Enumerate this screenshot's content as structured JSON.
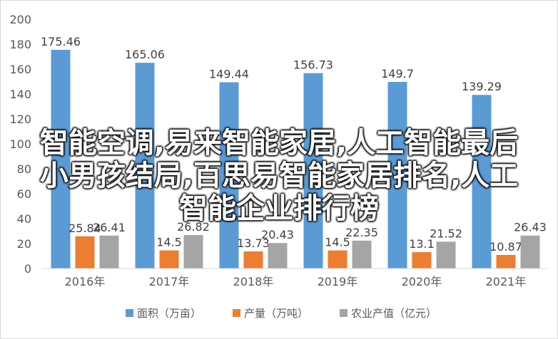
{
  "chart_data": {
    "type": "bar",
    "categories": [
      "2016年",
      "2017年",
      "2018年",
      "2019年",
      "2020年",
      "2021年"
    ],
    "series": [
      {
        "name": "面积（万亩）",
        "values": [
          175.46,
          165.06,
          149.44,
          156.73,
          149.7,
          139.29
        ],
        "color": "#5b9bd5"
      },
      {
        "name": "产量（万吨）",
        "values": [
          25.84,
          14.5,
          13.73,
          14.5,
          13.1,
          10.87
        ],
        "color": "#ed7d31"
      },
      {
        "name": "农业产值（亿元）",
        "values": [
          26.41,
          26.82,
          20.43,
          22.35,
          21.52,
          26.43
        ],
        "color": "#a5a5a5"
      }
    ],
    "ylim": [
      0,
      200
    ],
    "yticks": [
      0,
      20,
      40,
      60,
      80,
      100,
      120,
      140,
      160,
      180,
      200
    ],
    "grid": false,
    "legend": "bottom",
    "data_labels": [
      [
        "175.46",
        "165.06",
        "149.44",
        "156.73",
        "149.7",
        "139.29"
      ],
      [
        "25.84",
        "14.5",
        "13.73",
        "14.5",
        "13.1",
        "10.87"
      ],
      [
        "26.41",
        "26.82",
        "20.43",
        "22.35",
        "21.52",
        "26.43"
      ]
    ]
  },
  "overlay_text": {
    "line1": "智能空调,易来智能家居,人工智能最后",
    "line2": "小男孩结局,百思易智能家居排名,人工",
    "line3": "智能企业排行榜"
  }
}
